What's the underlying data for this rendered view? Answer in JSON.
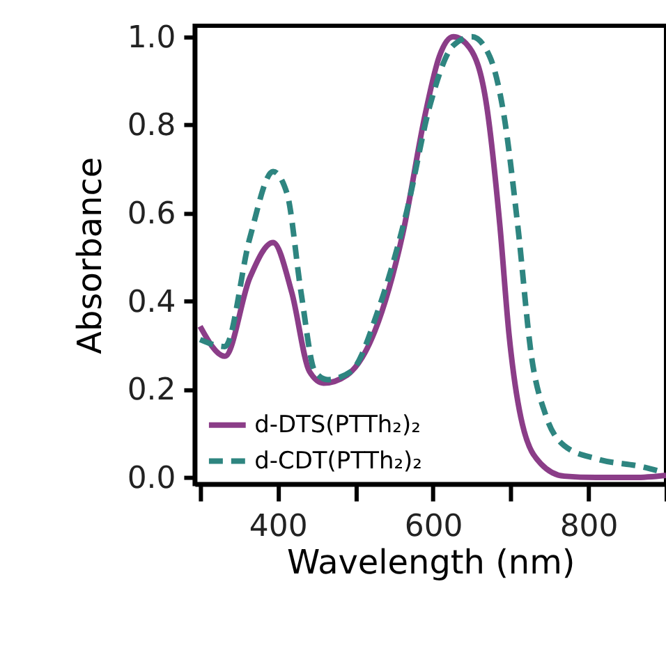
{
  "chart_data": {
    "type": "line",
    "xlabel": "Wavelength (nm)",
    "ylabel": "Absorbance",
    "xlim": [
      293,
      900
    ],
    "ylim": [
      -0.015,
      1.025
    ],
    "xticks": [
      {
        "value": 300,
        "label": null
      },
      400,
      {
        "value": 500,
        "label": null
      },
      600,
      {
        "value": 700,
        "label": null
      },
      800,
      {
        "value": 900,
        "label": null
      }
    ],
    "yticks": [
      {
        "value": 0,
        "label": "0.0"
      },
      0.2,
      0.4,
      0.6,
      0.8,
      {
        "value": 1,
        "label": "1.0"
      }
    ],
    "grid": false,
    "legend": "bottom left",
    "series": [
      {
        "name": "d-DTS(PTTh₂)₂",
        "color": "#8b3d88",
        "line_style": "solid",
        "x": [
          300,
          332,
          364,
          394,
          418,
          441,
          459,
          489,
          525,
          561,
          590,
          608,
          626,
          647,
          669,
          686,
          698,
          715,
          739,
          769,
          810,
          860,
          900
        ],
        "values": [
          0.343,
          0.275,
          0.453,
          0.533,
          0.42,
          0.24,
          0.214,
          0.232,
          0.332,
          0.553,
          0.825,
          0.955,
          1.0,
          0.975,
          0.844,
          0.573,
          0.322,
          0.121,
          0.031,
          0.003,
          0.0,
          0.0,
          0.005
        ]
      },
      {
        "name": "d-CDT(PTTh₂)₂",
        "color": "#2e8580",
        "line_style": "dashed",
        "x": [
          300,
          332,
          364,
          394,
          412,
          430,
          448,
          464,
          494,
          530,
          566,
          596,
          626,
          650,
          673,
          691,
          709,
          727,
          745,
          769,
          811,
          870,
          896
        ],
        "values": [
          0.313,
          0.297,
          0.543,
          0.694,
          0.644,
          0.42,
          0.24,
          0.222,
          0.24,
          0.383,
          0.603,
          0.844,
          0.98,
          1.0,
          0.955,
          0.825,
          0.573,
          0.272,
          0.142,
          0.072,
          0.042,
          0.024,
          0.012
        ]
      }
    ]
  }
}
